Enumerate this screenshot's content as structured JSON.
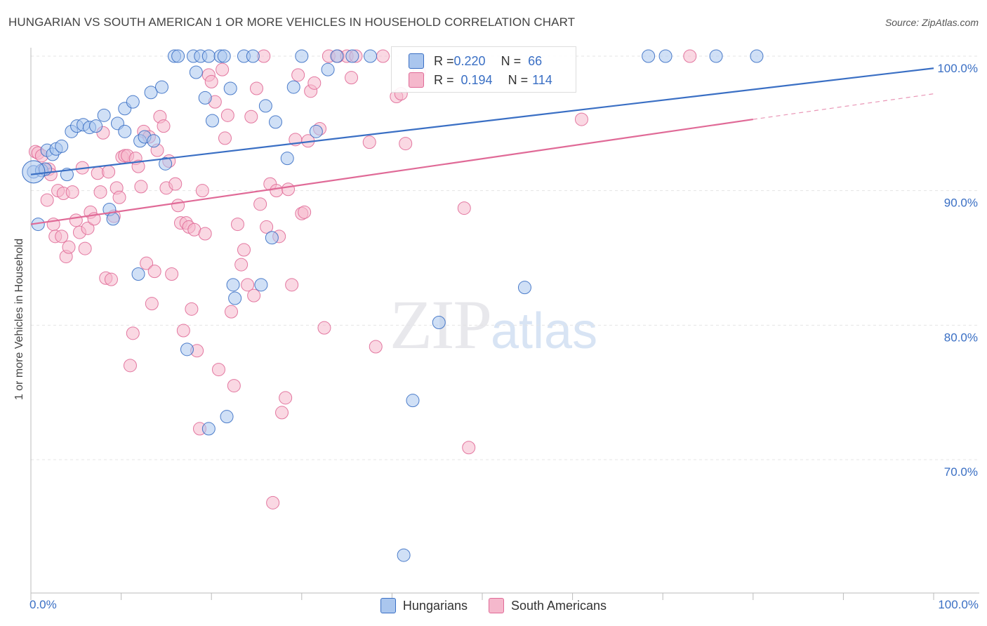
{
  "title": "HUNGARIAN VS SOUTH AMERICAN 1 OR MORE VEHICLES IN HOUSEHOLD CORRELATION CHART",
  "source": "Source: ZipAtlas.com",
  "watermark": {
    "zip": "ZIP",
    "atlas": "atlas"
  },
  "legend": {
    "hungarians": {
      "r_label": "R = ",
      "r_value": "0.220",
      "n_label": "N = ",
      "n_value": "66"
    },
    "south_americans": {
      "r_label": "R = ",
      "r_value": "0.194",
      "n_label": "N = ",
      "n_value": "114"
    }
  },
  "bottom_legend": {
    "hungarians": "Hungarians",
    "south_americans": "South Americans"
  },
  "colors": {
    "blue": "#3a6fc4",
    "blue_fill": "#aac6ee",
    "pink": "#e06a97",
    "pink_fill": "#f5b8cc"
  },
  "chart_data": {
    "type": "scatter",
    "title": "HUNGARIAN VS SOUTH AMERICAN 1 OR MORE VEHICLES IN HOUSEHOLD CORRELATION CHART",
    "xlabel": "",
    "ylabel": "1 or more Vehicles in Household",
    "x_tick_labels": [
      "0.0%",
      "100.0%"
    ],
    "y_tick_labels": [
      "100.0%",
      "90.0%",
      "80.0%",
      "70.0%"
    ],
    "y_ticks": [
      100,
      90,
      80,
      70
    ],
    "xlim": [
      0,
      105
    ],
    "ylim": [
      60.5,
      100.8
    ],
    "grid": true,
    "series": [
      {
        "name": "Hungarians",
        "color": "#3a6fc4",
        "trend": {
          "x": [
            0,
            100
          ],
          "y": [
            91.2,
            99.1
          ]
        },
        "points": [
          [
            0.3,
            91.4
          ],
          [
            0.8,
            87.5
          ],
          [
            1.2,
            91.5
          ],
          [
            1.6,
            91.6
          ],
          [
            1.8,
            93.0
          ],
          [
            2.4,
            92.7
          ],
          [
            2.8,
            93.1
          ],
          [
            3.4,
            93.3
          ],
          [
            4.0,
            91.2
          ],
          [
            4.5,
            94.4
          ],
          [
            5.1,
            94.8
          ],
          [
            5.8,
            94.9
          ],
          [
            6.5,
            94.7
          ],
          [
            7.2,
            94.8
          ],
          [
            8.1,
            95.6
          ],
          [
            8.7,
            88.6
          ],
          [
            9.1,
            87.9
          ],
          [
            9.6,
            95.0
          ],
          [
            10.4,
            94.4
          ],
          [
            10.4,
            96.1
          ],
          [
            11.3,
            96.6
          ],
          [
            11.9,
            83.8
          ],
          [
            12.1,
            93.7
          ],
          [
            12.6,
            94.0
          ],
          [
            13.3,
            97.3
          ],
          [
            13.6,
            93.7
          ],
          [
            14.5,
            97.7
          ],
          [
            14.9,
            92.0
          ],
          [
            15.9,
            100.0
          ],
          [
            16.3,
            100.0
          ],
          [
            17.3,
            78.2
          ],
          [
            18.0,
            100.0
          ],
          [
            18.3,
            98.8
          ],
          [
            18.8,
            100.0
          ],
          [
            19.3,
            96.9
          ],
          [
            19.7,
            72.3
          ],
          [
            19.7,
            100.0
          ],
          [
            20.1,
            95.2
          ],
          [
            21.0,
            100.0
          ],
          [
            21.4,
            100.0
          ],
          [
            21.7,
            73.2
          ],
          [
            22.1,
            97.6
          ],
          [
            22.4,
            83.0
          ],
          [
            22.6,
            82.0
          ],
          [
            23.6,
            100.0
          ],
          [
            24.6,
            100.0
          ],
          [
            25.5,
            83.0
          ],
          [
            26.0,
            96.3
          ],
          [
            26.7,
            86.5
          ],
          [
            27.1,
            95.1
          ],
          [
            28.4,
            92.4
          ],
          [
            29.1,
            97.7
          ],
          [
            30.0,
            100.0
          ],
          [
            31.6,
            94.4
          ],
          [
            32.9,
            99.0
          ],
          [
            33.9,
            100.0
          ],
          [
            35.6,
            100.0
          ],
          [
            37.6,
            100.0
          ],
          [
            41.3,
            62.9
          ],
          [
            42.3,
            74.4
          ],
          [
            45.2,
            80.2
          ],
          [
            54.7,
            82.8
          ],
          [
            68.4,
            100.0
          ],
          [
            70.3,
            100.0
          ],
          [
            75.9,
            100.0
          ],
          [
            80.4,
            100.0
          ]
        ]
      },
      {
        "name": "South Americans",
        "color": "#e06a97",
        "trend": {
          "x": [
            0,
            80
          ],
          "y": [
            87.5,
            95.3
          ]
        },
        "trend_dashed": {
          "x": [
            80,
            100
          ],
          "y": [
            95.3,
            97.2
          ]
        },
        "points": [
          [
            0.5,
            92.9
          ],
          [
            0.8,
            92.8
          ],
          [
            1.2,
            92.6
          ],
          [
            1.5,
            91.6
          ],
          [
            1.8,
            89.3
          ],
          [
            2.0,
            91.6
          ],
          [
            2.2,
            91.2
          ],
          [
            2.5,
            87.5
          ],
          [
            2.7,
            86.6
          ],
          [
            3.0,
            90.0
          ],
          [
            3.4,
            86.6
          ],
          [
            3.6,
            89.8
          ],
          [
            3.9,
            85.1
          ],
          [
            4.2,
            85.8
          ],
          [
            4.6,
            89.9
          ],
          [
            5.0,
            87.8
          ],
          [
            5.4,
            86.9
          ],
          [
            5.7,
            91.7
          ],
          [
            6.0,
            85.7
          ],
          [
            6.3,
            87.2
          ],
          [
            6.6,
            88.4
          ],
          [
            7.0,
            87.9
          ],
          [
            7.4,
            91.3
          ],
          [
            7.7,
            89.9
          ],
          [
            8.0,
            94.3
          ],
          [
            8.3,
            83.5
          ],
          [
            8.6,
            91.4
          ],
          [
            8.9,
            83.4
          ],
          [
            9.2,
            88.1
          ],
          [
            9.5,
            90.2
          ],
          [
            9.8,
            89.5
          ],
          [
            10.1,
            92.5
          ],
          [
            10.4,
            92.6
          ],
          [
            10.7,
            92.6
          ],
          [
            11.0,
            77.0
          ],
          [
            11.3,
            79.4
          ],
          [
            11.6,
            92.4
          ],
          [
            11.9,
            91.8
          ],
          [
            12.2,
            90.3
          ],
          [
            12.5,
            94.4
          ],
          [
            12.8,
            84.6
          ],
          [
            13.1,
            94.0
          ],
          [
            13.4,
            81.6
          ],
          [
            13.7,
            84.0
          ],
          [
            14.0,
            93.0
          ],
          [
            14.3,
            95.5
          ],
          [
            14.7,
            94.8
          ],
          [
            15.0,
            90.2
          ],
          [
            15.3,
            92.2
          ],
          [
            15.6,
            83.8
          ],
          [
            16.0,
            90.5
          ],
          [
            16.3,
            88.9
          ],
          [
            16.6,
            87.6
          ],
          [
            16.9,
            79.6
          ],
          [
            17.2,
            87.6
          ],
          [
            17.5,
            87.3
          ],
          [
            17.8,
            81.2
          ],
          [
            18.1,
            87.1
          ],
          [
            18.4,
            78.1
          ],
          [
            18.7,
            72.3
          ],
          [
            19.0,
            90.0
          ],
          [
            19.3,
            86.8
          ],
          [
            19.7,
            98.6
          ],
          [
            20.0,
            98.1
          ],
          [
            20.4,
            96.6
          ],
          [
            20.8,
            76.7
          ],
          [
            21.2,
            99.0
          ],
          [
            21.5,
            93.9
          ],
          [
            21.8,
            95.6
          ],
          [
            22.2,
            81.0
          ],
          [
            22.5,
            75.5
          ],
          [
            22.9,
            87.5
          ],
          [
            23.3,
            84.5
          ],
          [
            23.6,
            85.6
          ],
          [
            24.0,
            83.0
          ],
          [
            24.4,
            95.5
          ],
          [
            24.7,
            82.2
          ],
          [
            25.0,
            97.6
          ],
          [
            25.4,
            89.0
          ],
          [
            25.8,
            100.0
          ],
          [
            26.1,
            87.3
          ],
          [
            26.5,
            90.5
          ],
          [
            26.8,
            66.8
          ],
          [
            27.2,
            90.0
          ],
          [
            27.5,
            86.6
          ],
          [
            27.8,
            73.5
          ],
          [
            28.2,
            74.6
          ],
          [
            28.5,
            90.1
          ],
          [
            28.9,
            83.0
          ],
          [
            29.3,
            93.8
          ],
          [
            29.6,
            98.6
          ],
          [
            30.0,
            88.3
          ],
          [
            30.3,
            88.4
          ],
          [
            30.7,
            93.7
          ],
          [
            31.0,
            97.4
          ],
          [
            31.4,
            98.0
          ],
          [
            32.0,
            94.6
          ],
          [
            32.5,
            79.8
          ],
          [
            33.0,
            100.0
          ],
          [
            34.0,
            100.0
          ],
          [
            35.0,
            100.0
          ],
          [
            35.5,
            98.4
          ],
          [
            36.0,
            100.0
          ],
          [
            37.5,
            93.6
          ],
          [
            38.2,
            78.4
          ],
          [
            39.0,
            100.0
          ],
          [
            40.5,
            97.0
          ],
          [
            41.0,
            97.2
          ],
          [
            41.5,
            93.5
          ],
          [
            43.0,
            98.8
          ],
          [
            48.0,
            88.7
          ],
          [
            48.5,
            70.9
          ],
          [
            61.0,
            95.3
          ],
          [
            73.0,
            100.0
          ]
        ]
      }
    ]
  }
}
